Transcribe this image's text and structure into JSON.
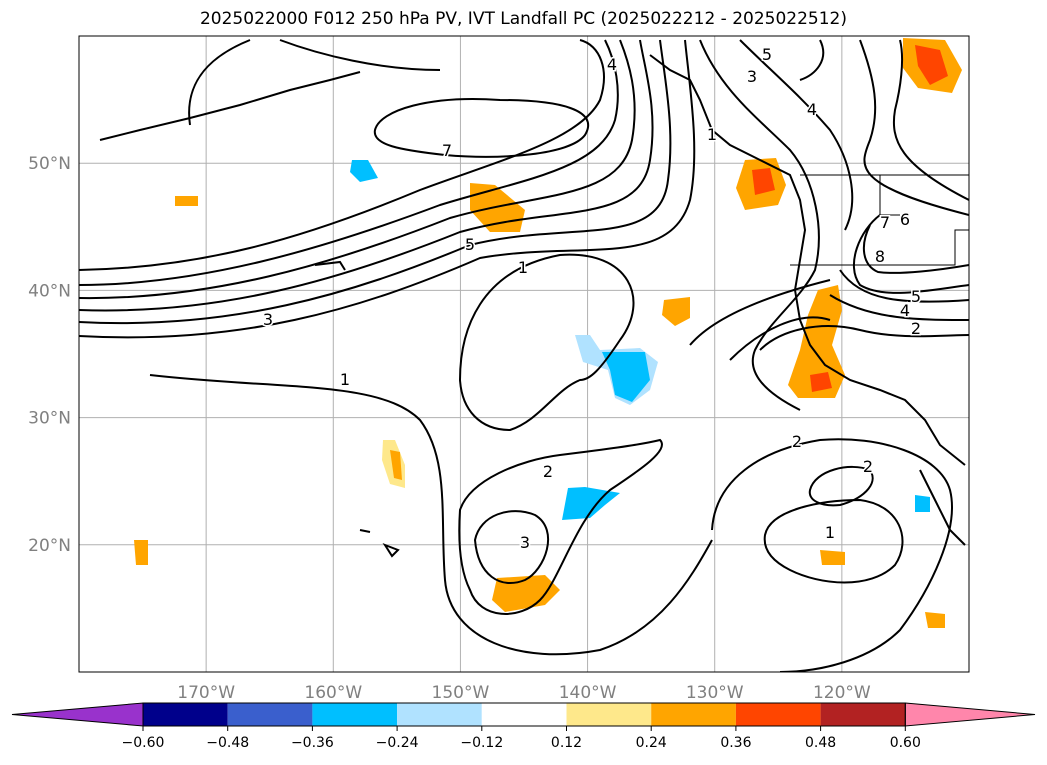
{
  "title": "2025022000 F012 250 hPa PV, IVT Landfall PC (2025022212 - 2025022512)",
  "map": {
    "lon_range": [
      -180,
      -110
    ],
    "lat_range": [
      10,
      60
    ],
    "lat_ticks": [
      {
        "value": 50,
        "label": "50°N"
      },
      {
        "value": 40,
        "label": "40°N"
      },
      {
        "value": 30,
        "label": "30°N"
      },
      {
        "value": 20,
        "label": "20°N"
      }
    ],
    "lon_ticks": [
      {
        "value": -170,
        "label": "170°W"
      },
      {
        "value": -160,
        "label": "160°W"
      },
      {
        "value": -150,
        "label": "150°W"
      },
      {
        "value": -140,
        "label": "140°W"
      },
      {
        "value": -130,
        "label": "130°W"
      },
      {
        "value": -120,
        "label": "120°W"
      }
    ],
    "grid": true,
    "contour_labels": [
      "7",
      "5",
      "3",
      "1",
      "1",
      "2",
      "3",
      "4",
      "5",
      "3",
      "4",
      "1",
      "2",
      "1",
      "2",
      "8",
      "7",
      "6",
      "5",
      "4",
      "2"
    ]
  },
  "colorbar": {
    "levels": [
      "−0.60",
      "−0.48",
      "−0.36",
      "−0.24",
      "−0.12",
      "0.12",
      "0.24",
      "0.36",
      "0.48",
      "0.60"
    ],
    "colors": [
      "#9932cc",
      "#00008b",
      "#3a5fcd",
      "#00bfff",
      "#b0e2ff",
      "#ffffff",
      "#fee88b",
      "#ffa500",
      "#ff4500",
      "#b22222",
      "#ff86ab"
    ],
    "extend": "both"
  },
  "chart_data": {
    "type": "map-contour",
    "field_contours": "250 hPa PV (black lines)",
    "field_shaded": "IVT Landfall PC",
    "contour_levels_labeled": [
      1,
      2,
      3,
      4,
      5,
      6,
      7,
      8
    ],
    "shading_levels": [
      -0.6,
      -0.48,
      -0.36,
      -0.24,
      -0.12,
      0.12,
      0.24,
      0.36,
      0.48,
      0.6
    ]
  }
}
